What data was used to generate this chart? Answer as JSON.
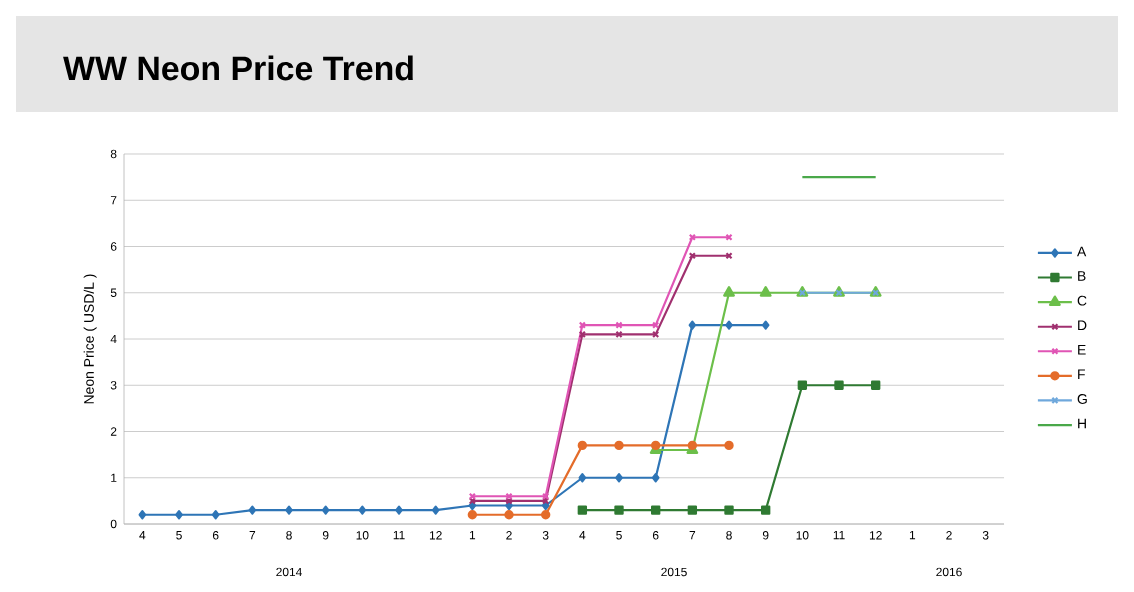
{
  "chart_data": {
    "type": "line",
    "title": "WW Neon Price Trend",
    "ylabel": "Neon Price ( USD/L )",
    "categories": [
      "4",
      "5",
      "6",
      "7",
      "8",
      "9",
      "10",
      "11",
      "12",
      "1",
      "2",
      "3",
      "4",
      "5",
      "6",
      "7",
      "8",
      "9",
      "10",
      "11",
      "12",
      "1",
      "2",
      "3"
    ],
    "annotations": [
      "2014",
      "2015",
      "2016"
    ],
    "ylim": [
      0,
      8
    ],
    "yticks": [
      0,
      1,
      2,
      3,
      4,
      5,
      6,
      7,
      8
    ],
    "grid": "y",
    "legend": "right",
    "line_style": "solid",
    "series": [
      {
        "name": "A",
        "color": "#2e75b6",
        "marker": "diamond",
        "values": [
          0.2,
          0.2,
          0.2,
          0.3,
          0.3,
          0.3,
          0.3,
          0.3,
          0.3,
          0.4,
          0.4,
          0.4,
          1.0,
          1.0,
          1.0,
          4.3,
          4.3,
          4.3,
          null,
          null,
          null,
          null,
          null,
          null
        ]
      },
      {
        "name": "B",
        "color": "#2f7a32",
        "marker": "square",
        "values": [
          null,
          null,
          null,
          null,
          null,
          null,
          null,
          null,
          null,
          null,
          null,
          null,
          0.3,
          0.3,
          0.3,
          0.3,
          0.3,
          0.3,
          3.0,
          3.0,
          3.0,
          null,
          null,
          null
        ]
      },
      {
        "name": "C",
        "color": "#6cbf4a",
        "marker": "triangle",
        "values": [
          null,
          null,
          null,
          null,
          null,
          null,
          null,
          null,
          null,
          null,
          null,
          null,
          null,
          null,
          1.6,
          1.6,
          5.0,
          5.0,
          5.0,
          5.0,
          5.0,
          null,
          null,
          null
        ]
      },
      {
        "name": "D",
        "color": "#a0306f",
        "marker": "cross",
        "values": [
          null,
          null,
          null,
          null,
          null,
          null,
          null,
          null,
          null,
          0.5,
          0.5,
          0.5,
          4.1,
          4.1,
          4.1,
          5.8,
          5.8,
          null,
          null,
          null,
          null,
          null,
          null,
          null
        ]
      },
      {
        "name": "E",
        "color": "#e055b5",
        "marker": "cross",
        "values": [
          null,
          null,
          null,
          null,
          null,
          null,
          null,
          null,
          null,
          0.6,
          0.6,
          0.6,
          4.3,
          4.3,
          4.3,
          6.2,
          6.2,
          null,
          null,
          null,
          null,
          null,
          null,
          null
        ]
      },
      {
        "name": "F",
        "color": "#e46c2a",
        "marker": "circle",
        "values": [
          null,
          null,
          null,
          null,
          null,
          null,
          null,
          null,
          null,
          0.2,
          0.2,
          0.2,
          1.7,
          1.7,
          1.7,
          1.7,
          1.7,
          null,
          null,
          null,
          null,
          null,
          null,
          null
        ]
      },
      {
        "name": "G",
        "color": "#6fa8dc",
        "marker": "cross",
        "values": [
          null,
          null,
          null,
          null,
          null,
          null,
          null,
          null,
          null,
          null,
          null,
          null,
          null,
          null,
          null,
          null,
          null,
          null,
          5.0,
          5.0,
          5.0,
          null,
          null,
          null
        ]
      },
      {
        "name": "H",
        "color": "#4aa84a",
        "marker": "none",
        "values": [
          null,
          null,
          null,
          null,
          null,
          null,
          null,
          null,
          null,
          null,
          null,
          null,
          null,
          null,
          null,
          null,
          null,
          null,
          7.5,
          7.5,
          7.5,
          null,
          null,
          null
        ]
      }
    ]
  }
}
